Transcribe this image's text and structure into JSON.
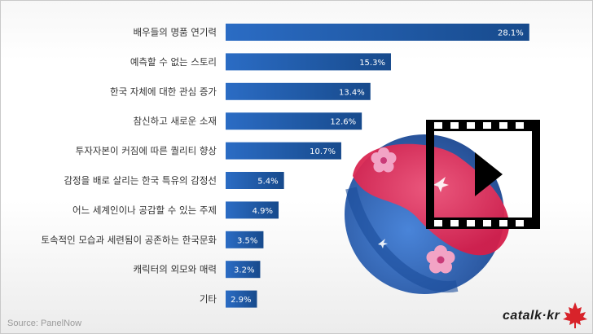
{
  "chart_data": {
    "type": "bar",
    "orientation": "horizontal",
    "categories": [
      "배우들의 명품 연기력",
      "예측할 수 없는 스토리",
      "한국 자체에 대한 관심 증가",
      "참신하고 새로운 소재",
      "투자자본이 커짐에 따른 퀄리티 향상",
      "감정을 배로 살리는 한국 특유의 감정선",
      "어느 세계인이나 공감할 수 있는 주제",
      "토속적인 모습과 세련됨이 공존하는 한국문화",
      "캐릭터의 외모와 매력",
      "기타"
    ],
    "values": [
      28.1,
      15.3,
      13.4,
      12.6,
      10.7,
      5.4,
      4.9,
      3.5,
      3.2,
      2.9
    ],
    "value_labels": [
      "28.1%",
      "15.3%",
      "13.4%",
      "12.6%",
      "10.7%",
      "5.4%",
      "4.9%",
      "3.5%",
      "3.2%",
      "2.9%"
    ],
    "xlim": [
      0,
      30
    ],
    "unit": "%",
    "bar_color": "#1f5aa6",
    "grid": false
  },
  "source": "Source: PanelNow",
  "brand": "catalk·kr",
  "colors": {
    "bar_start": "#2b6cc4",
    "bar_end": "#174a8c",
    "taeguk_red": "#e63559",
    "taeguk_blue": "#1f52a8"
  },
  "icons": [
    "film-strip-icon",
    "play-icon",
    "maple-leaf-icon",
    "flower-icon",
    "bird-icon"
  ]
}
